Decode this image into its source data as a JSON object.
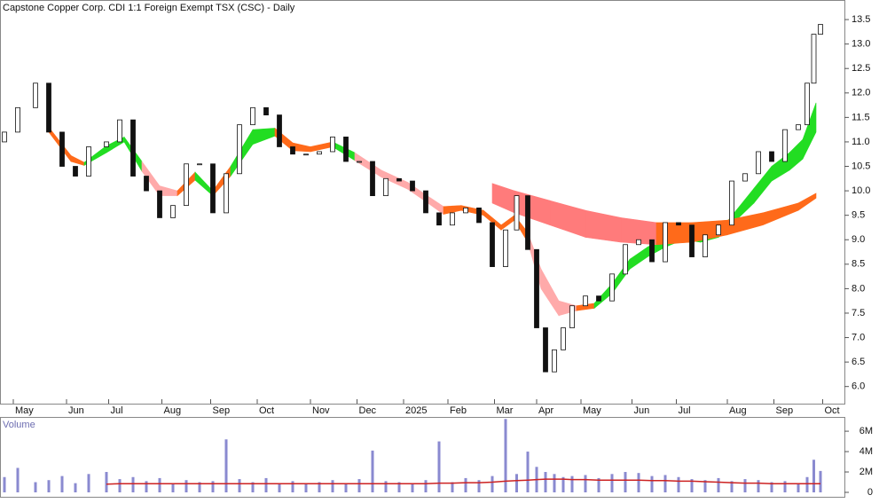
{
  "chart_data": [
    {
      "type": "candlestick",
      "title": "Capstone Copper Corp. CDI 1:1 Foreign Exempt TSX (CSC) - Daily",
      "x": [
        2,
        8,
        16,
        22,
        28,
        34,
        40,
        48,
        54,
        60,
        66,
        72,
        78,
        84,
        90,
        96,
        102,
        108,
        114,
        120,
        126,
        132,
        138,
        144,
        150,
        156,
        162,
        168,
        174,
        180,
        186,
        192,
        198,
        204,
        210,
        216,
        222,
        228,
        233,
        238,
        242,
        246,
        250,
        254,
        258,
        264,
        270,
        276,
        282,
        288,
        294,
        300,
        306,
        312,
        318,
        324,
        330,
        336,
        342,
        348,
        354,
        360,
        364,
        367,
        370
      ],
      "open": [
        11.0,
        11.2,
        11.7,
        12.2,
        11.2,
        10.5,
        10.3,
        10.9,
        11.0,
        11.45,
        10.3,
        10.0,
        9.45,
        9.7,
        10.55,
        10.55,
        9.55,
        10.35,
        11.35,
        11.7,
        11.55,
        10.9,
        10.75,
        10.75,
        10.8,
        11.1,
        10.6,
        10.6,
        9.9,
        10.25,
        10.2,
        10.0,
        9.55,
        9.3,
        9.55,
        9.65,
        9.35,
        8.45,
        9.2,
        9.9,
        8.8,
        7.2,
        6.3,
        6.75,
        7.2,
        7.65,
        7.85,
        7.75,
        8.3,
        8.9,
        9.0,
        8.55,
        9.35,
        9.3,
        8.65,
        9.1,
        9.3,
        10.2,
        10.35,
        10.8,
        10.6,
        11.25,
        11.35,
        12.2,
        13.2
      ],
      "close": [
        11.2,
        11.7,
        12.2,
        11.2,
        10.5,
        10.3,
        10.9,
        11.0,
        11.45,
        10.3,
        10.0,
        9.45,
        9.7,
        10.55,
        10.55,
        9.55,
        10.35,
        11.35,
        11.7,
        11.55,
        10.9,
        10.75,
        10.75,
        10.8,
        11.1,
        10.6,
        10.6,
        9.9,
        10.25,
        10.2,
        10.0,
        9.55,
        9.3,
        9.55,
        9.65,
        9.35,
        8.45,
        9.2,
        9.9,
        8.8,
        7.2,
        6.3,
        6.75,
        7.2,
        7.65,
        7.85,
        7.75,
        8.3,
        8.9,
        9.0,
        8.55,
        9.35,
        9.3,
        8.65,
        9.1,
        9.3,
        10.2,
        10.35,
        10.8,
        10.6,
        11.25,
        11.35,
        12.2,
        13.2,
        13.4
      ],
      "up_color": "#ffffff",
      "down_color": "#111111",
      "ribbons": [
        {
          "x": [
            22,
            32,
            38,
            48,
            56,
            64,
            72,
            80,
            88,
            96,
            104,
            114,
            124,
            132,
            140,
            150,
            160,
            172,
            184,
            192,
            200,
            208,
            218,
            226,
            232,
            238,
            244,
            252,
            260,
            268,
            276,
            284,
            292,
            300,
            308,
            316,
            324,
            332,
            340,
            348,
            356,
            362,
            368
          ],
          "upper": [
            11.3,
            10.72,
            10.58,
            10.92,
            11.1,
            10.6,
            10.1,
            10.0,
            10.38,
            10.0,
            10.5,
            11.25,
            11.28,
            10.98,
            10.9,
            11.0,
            10.78,
            10.42,
            10.17,
            9.92,
            9.68,
            9.7,
            9.6,
            9.3,
            9.5,
            9.15,
            8.4,
            7.75,
            7.65,
            7.7,
            8.1,
            8.6,
            8.85,
            9.05,
            9.2,
            9.05,
            9.15,
            9.6,
            10.05,
            10.5,
            10.78,
            11.05,
            11.8
          ],
          "lower": [
            11.2,
            10.6,
            10.52,
            10.78,
            11.0,
            10.4,
            9.9,
            9.9,
            10.22,
            9.9,
            10.3,
            10.95,
            11.12,
            10.82,
            10.8,
            10.9,
            10.62,
            10.28,
            10.03,
            9.78,
            9.52,
            9.6,
            9.5,
            9.2,
            9.4,
            8.95,
            8.0,
            7.45,
            7.55,
            7.6,
            7.9,
            8.4,
            8.65,
            8.85,
            9.0,
            8.95,
            9.05,
            9.4,
            9.75,
            10.2,
            10.42,
            10.65,
            11.2
          ],
          "colors": [
            "#ff6a1a",
            "#ff6a1a",
            "#22dd22",
            "#22dd22",
            "#22dd22",
            "#ffaaaa",
            "#ffaaaa",
            "#ff6a1a",
            "#22dd22",
            "#ff6a1a",
            "#22dd22",
            "#22dd22",
            "#ff6a1a",
            "#ff6a1a",
            "#ff6a1a",
            "#22dd22",
            "#ffaaaa",
            "#ffaaaa",
            "#ffaaaa",
            "#ffaaaa",
            "#ff6a1a",
            "#ff6a1a",
            "#ff6a1a",
            "#ff6a1a",
            "#ff6a1a",
            "#ffaaaa",
            "#ffaaaa",
            "#ffaaaa",
            "#ff6a1a",
            "#22dd22",
            "#22dd22",
            "#22dd22",
            "#22dd22",
            "#22dd22",
            "#22dd22",
            "#22dd22",
            "#22dd22",
            "#22dd22",
            "#22dd22",
            "#22dd22",
            "#22dd22",
            "#22dd22",
            "#22dd22"
          ]
        },
        {
          "x": [
            222,
            232,
            248,
            264,
            280,
            296,
            312,
            328,
            344,
            360,
            368
          ],
          "upper": [
            10.15,
            10.0,
            9.8,
            9.6,
            9.45,
            9.35,
            9.35,
            9.4,
            9.55,
            9.75,
            9.95
          ],
          "lower": [
            9.75,
            9.55,
            9.3,
            9.05,
            8.95,
            8.9,
            8.95,
            9.1,
            9.3,
            9.6,
            9.85
          ],
          "colors": [
            "#ff7b7b",
            "#ff7b7b",
            "#ff7b7b",
            "#ff7b7b",
            "#ff7b7b",
            "#ff6a1a",
            "#ff6a1a",
            "#ff6a1a",
            "#ff6a1a",
            "#ff6a1a",
            "#22dd22"
          ]
        }
      ],
      "xlim": [
        0,
        376
      ],
      "xticks": [
        {
          "value": 6,
          "label": "May"
        },
        {
          "value": 30,
          "label": "Jun"
        },
        {
          "value": 49,
          "label": "Jul"
        },
        {
          "value": 73,
          "label": "Aug"
        },
        {
          "value": 95,
          "label": "Sep"
        },
        {
          "value": 116,
          "label": "Oct"
        },
        {
          "value": 140,
          "label": "Nov"
        },
        {
          "value": 161,
          "label": "Dec"
        },
        {
          "value": 182,
          "label": "2025"
        },
        {
          "value": 202,
          "label": "Feb"
        },
        {
          "value": 223,
          "label": "Mar"
        },
        {
          "value": 242,
          "label": "Apr"
        },
        {
          "value": 262,
          "label": "May"
        },
        {
          "value": 285,
          "label": "Jun"
        },
        {
          "value": 305,
          "label": "Jul"
        },
        {
          "value": 328,
          "label": "Aug"
        },
        {
          "value": 349,
          "label": "Sep"
        },
        {
          "value": 371,
          "label": "Oct"
        }
      ],
      "ylim": [
        5.65,
        13.9
      ],
      "yticks": [
        {
          "value": 6,
          "label": "6.0"
        },
        6.5,
        {
          "value": 7,
          "label": "7.0"
        },
        7.5,
        {
          "value": 8,
          "label": "8.0"
        },
        8.5,
        {
          "value": 9,
          "label": "9.0"
        },
        9.5,
        {
          "value": 10,
          "label": "10.0"
        },
        10.5,
        {
          "value": 11,
          "label": "11.0"
        },
        11.5,
        {
          "value": 12,
          "label": "12.0"
        },
        12.5,
        {
          "value": 13,
          "label": "13.0"
        },
        13.5
      ]
    },
    {
      "type": "bar",
      "title": "Volume",
      "x": [
        2,
        8,
        16,
        22,
        28,
        34,
        40,
        48,
        54,
        60,
        66,
        72,
        78,
        84,
        90,
        96,
        102,
        108,
        114,
        120,
        126,
        132,
        138,
        144,
        150,
        156,
        162,
        168,
        174,
        180,
        186,
        192,
        198,
        204,
        210,
        216,
        222,
        228,
        233,
        238,
        242,
        246,
        250,
        254,
        258,
        264,
        270,
        276,
        282,
        288,
        294,
        300,
        306,
        312,
        318,
        324,
        330,
        336,
        342,
        348,
        354,
        360,
        364,
        367,
        370
      ],
      "values": [
        1500000,
        2400000,
        1000000,
        1200000,
        1600000,
        900000,
        1800000,
        2000000,
        1300000,
        1500000,
        1100000,
        1400000,
        900000,
        1200000,
        1000000,
        1100000,
        5200000,
        1300000,
        1000000,
        1400000,
        900000,
        1100000,
        800000,
        1000000,
        1200000,
        900000,
        1300000,
        4100000,
        1100000,
        1000000,
        900000,
        1200000,
        5000000,
        1000000,
        1400000,
        1200000,
        1600000,
        7200000,
        1800000,
        4000000,
        2500000,
        2000000,
        1800000,
        1500000,
        1600000,
        1700000,
        1400000,
        1800000,
        2000000,
        1900000,
        1600000,
        1700000,
        1500000,
        1300000,
        1200000,
        1400000,
        1100000,
        1300000,
        1200000,
        1000000,
        1100000,
        900000,
        1500000,
        3200000,
        2100000
      ],
      "color": "#8a8ad0",
      "average": [
        null,
        null,
        null,
        null,
        null,
        null,
        null,
        800000,
        850000,
        850000,
        850000,
        850000,
        850000,
        850000,
        850000,
        850000,
        850000,
        850000,
        850000,
        850000,
        850000,
        850000,
        850000,
        850000,
        850000,
        850000,
        850000,
        850000,
        850000,
        850000,
        850000,
        850000,
        900000,
        900000,
        950000,
        950000,
        1000000,
        1100000,
        1150000,
        1200000,
        1250000,
        1300000,
        1300000,
        1300000,
        1250000,
        1250000,
        1200000,
        1200000,
        1200000,
        1200000,
        1150000,
        1150000,
        1100000,
        1100000,
        1050000,
        1000000,
        950000,
        900000,
        900000,
        850000,
        850000,
        850000,
        850000,
        850000,
        850000
      ],
      "average_color": "#cc2222",
      "xlim": [
        0,
        376
      ],
      "ylim": [
        0,
        7400000
      ],
      "yticks": [
        0,
        {
          "value": 2000000,
          "label": "2M"
        },
        {
          "value": 4000000,
          "label": "4M"
        },
        {
          "value": 6000000,
          "label": "6M"
        }
      ]
    }
  ]
}
